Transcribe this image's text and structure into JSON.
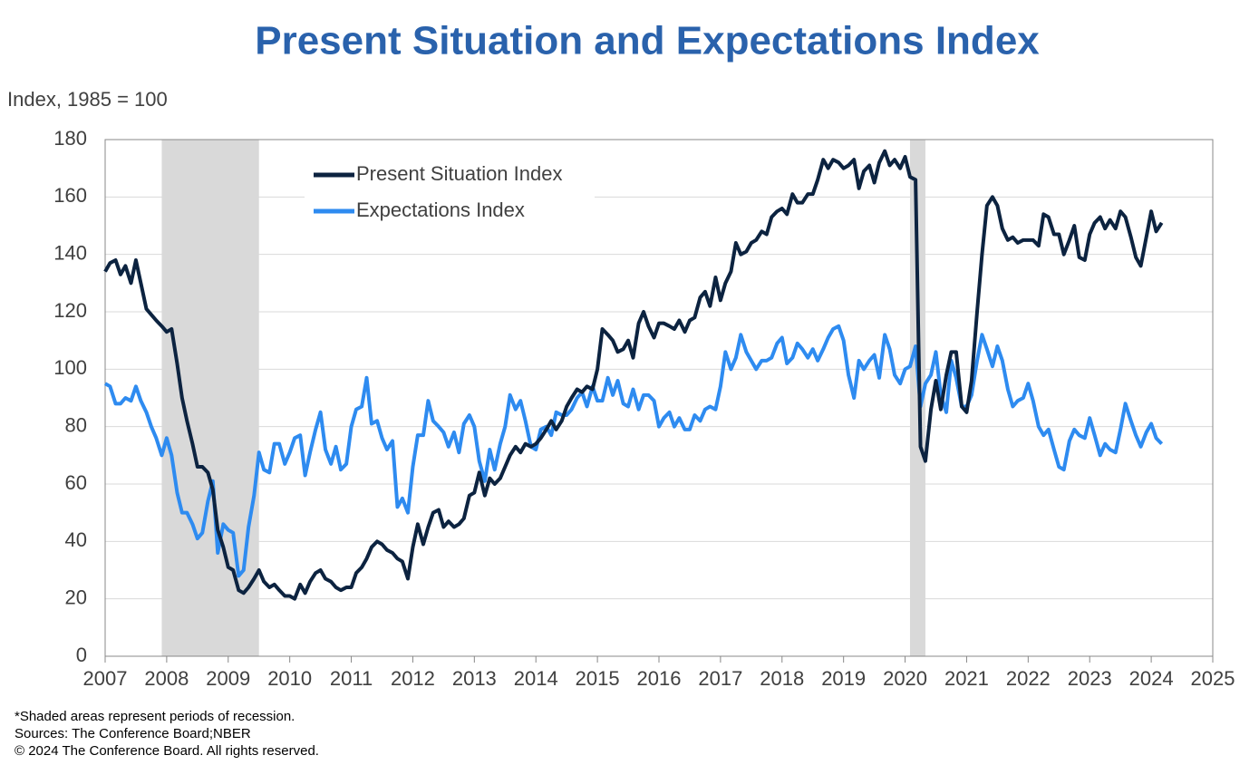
{
  "chart_data": {
    "type": "line",
    "title": "Present Situation and Expectations Index",
    "y_label": "Index, 1985 = 100",
    "notes": [
      "*Shaded areas represent periods of recession.",
      "Sources: The Conference Board;NBER",
      "© 2024 The Conference Board. All rights reserved."
    ],
    "xlim": [
      2007,
      2025
    ],
    "xticks": [
      2007,
      2008,
      2009,
      2010,
      2011,
      2012,
      2013,
      2014,
      2015,
      2016,
      2017,
      2018,
      2019,
      2020,
      2021,
      2022,
      2023,
      2024,
      2025
    ],
    "ylim": [
      0,
      180
    ],
    "yticks": [
      0,
      20,
      40,
      60,
      80,
      100,
      120,
      140,
      160,
      180
    ],
    "grid": true,
    "legend": "upper-left",
    "recessions": [
      [
        2007.92,
        2009.5
      ],
      [
        2020.08,
        2020.33
      ]
    ],
    "x": [
      2007,
      2007.08,
      2007.17,
      2007.25,
      2007.33,
      2007.42,
      2007.5,
      2007.58,
      2007.67,
      2007.75,
      2007.83,
      2007.92,
      2008,
      2008.08,
      2008.17,
      2008.25,
      2008.33,
      2008.42,
      2008.5,
      2008.58,
      2008.67,
      2008.75,
      2008.83,
      2008.92,
      2009,
      2009.08,
      2009.17,
      2009.25,
      2009.33,
      2009.42,
      2009.5,
      2009.58,
      2009.67,
      2009.75,
      2009.83,
      2009.92,
      2010,
      2010.08,
      2010.17,
      2010.25,
      2010.33,
      2010.42,
      2010.5,
      2010.58,
      2010.67,
      2010.75,
      2010.83,
      2010.92,
      2011,
      2011.08,
      2011.17,
      2011.25,
      2011.33,
      2011.42,
      2011.5,
      2011.58,
      2011.67,
      2011.75,
      2011.83,
      2011.92,
      2012,
      2012.08,
      2012.17,
      2012.25,
      2012.33,
      2012.42,
      2012.5,
      2012.58,
      2012.67,
      2012.75,
      2012.83,
      2012.92,
      2013,
      2013.08,
      2013.17,
      2013.25,
      2013.33,
      2013.42,
      2013.5,
      2013.58,
      2013.67,
      2013.75,
      2013.83,
      2013.92,
      2014,
      2014.08,
      2014.17,
      2014.25,
      2014.33,
      2014.42,
      2014.5,
      2014.58,
      2014.67,
      2014.75,
      2014.83,
      2014.92,
      2015,
      2015.08,
      2015.17,
      2015.25,
      2015.33,
      2015.42,
      2015.5,
      2015.58,
      2015.67,
      2015.75,
      2015.83,
      2015.92,
      2016,
      2016.08,
      2016.17,
      2016.25,
      2016.33,
      2016.42,
      2016.5,
      2016.58,
      2016.67,
      2016.75,
      2016.83,
      2016.92,
      2017,
      2017.08,
      2017.17,
      2017.25,
      2017.33,
      2017.42,
      2017.5,
      2017.58,
      2017.67,
      2017.75,
      2017.83,
      2017.92,
      2018,
      2018.08,
      2018.17,
      2018.25,
      2018.33,
      2018.42,
      2018.5,
      2018.58,
      2018.67,
      2018.75,
      2018.83,
      2018.92,
      2019,
      2019.08,
      2019.17,
      2019.25,
      2019.33,
      2019.42,
      2019.5,
      2019.58,
      2019.67,
      2019.75,
      2019.83,
      2019.92,
      2020,
      2020.08,
      2020.17,
      2020.25,
      2020.33,
      2020.42,
      2020.5,
      2020.58,
      2020.67,
      2020.75,
      2020.83,
      2020.92,
      2021,
      2021.08,
      2021.17,
      2021.25,
      2021.33,
      2021.42,
      2021.5,
      2021.58,
      2021.67,
      2021.75,
      2021.83,
      2021.92,
      2022,
      2022.08,
      2022.17,
      2022.25,
      2022.33,
      2022.42,
      2022.5,
      2022.58,
      2022.67,
      2022.75,
      2022.83,
      2022.92,
      2023,
      2023.08,
      2023.17,
      2023.25,
      2023.33,
      2023.42,
      2023.5,
      2023.58,
      2023.67,
      2023.75,
      2023.83,
      2023.92,
      2024,
      2024.08,
      2024.17
    ],
    "series": [
      {
        "name": "Present Situation Index",
        "color": "#0c2340",
        "values": [
          134,
          137,
          138,
          133,
          136,
          130,
          138,
          130,
          121,
          119,
          117,
          115,
          113,
          114,
          102,
          90,
          82,
          74,
          66,
          66,
          64,
          58,
          44,
          38,
          31,
          30,
          23,
          22,
          24,
          27,
          30,
          26,
          24,
          25,
          23,
          21,
          21,
          20,
          25,
          22,
          26,
          29,
          30,
          27,
          26,
          24,
          23,
          24,
          24,
          29,
          31,
          34,
          38,
          40,
          39,
          37,
          36,
          34,
          33,
          27,
          38,
          46,
          39,
          45,
          50,
          51,
          45,
          47,
          45,
          46,
          48,
          56,
          57,
          64,
          56,
          62,
          60,
          62,
          66,
          70,
          73,
          71,
          74,
          73,
          74,
          76,
          79,
          82,
          79,
          82,
          87,
          90,
          93,
          92,
          94,
          93,
          100,
          114,
          112,
          110,
          106,
          107,
          110,
          104,
          116,
          120,
          115,
          111,
          116,
          116,
          115,
          114,
          117,
          113,
          117,
          118,
          125,
          127,
          122,
          132,
          124,
          130,
          134,
          144,
          140,
          141,
          144,
          145,
          148,
          147,
          153,
          155,
          156,
          154,
          161,
          158,
          158,
          161,
          161,
          166,
          173,
          170,
          173,
          172,
          170,
          171,
          173,
          163,
          169,
          171,
          165,
          172,
          176,
          171,
          173,
          170,
          174,
          167,
          166,
          73,
          68,
          86,
          96,
          86,
          98,
          106,
          106,
          87,
          85,
          96,
          120,
          140,
          157,
          160,
          157,
          149,
          145,
          146,
          144,
          145,
          145,
          145,
          143,
          154,
          153,
          147,
          147,
          140,
          145,
          150,
          139,
          138,
          147,
          151,
          153,
          149,
          152,
          149,
          155,
          153,
          146,
          139,
          136,
          146,
          155,
          148,
          151
        ]
      },
      {
        "name": "Expectations Index",
        "color": "#2e8bf0",
        "values": [
          95,
          94,
          88,
          88,
          90,
          89,
          94,
          89,
          85,
          80,
          76,
          70,
          76,
          70,
          57,
          50,
          50,
          46,
          41,
          43,
          54,
          61,
          36,
          46,
          44,
          43,
          28,
          30,
          45,
          56,
          71,
          65,
          64,
          74,
          74,
          67,
          71,
          76,
          77,
          63,
          71,
          79,
          85,
          72,
          67,
          73,
          65,
          67,
          80,
          86,
          87,
          97,
          81,
          82,
          76,
          72,
          75,
          52,
          55,
          50,
          66,
          77,
          77,
          89,
          82,
          80,
          78,
          73,
          78,
          71,
          81,
          84,
          80,
          68,
          61,
          72,
          65,
          74,
          80,
          91,
          86,
          89,
          82,
          73,
          72,
          79,
          80,
          77,
          85,
          84,
          84,
          86,
          90,
          92,
          87,
          94,
          89,
          89,
          97,
          91,
          96,
          88,
          87,
          93,
          86,
          91,
          91,
          89,
          80,
          83,
          85,
          80,
          83,
          79,
          79,
          84,
          82,
          86,
          87,
          86,
          94,
          106,
          100,
          104,
          112,
          106,
          103,
          100,
          103,
          103,
          104,
          109,
          111,
          102,
          104,
          109,
          107,
          104,
          107,
          103,
          107,
          111,
          114,
          115,
          110,
          98,
          90,
          103,
          100,
          103,
          105,
          97,
          112,
          107,
          98,
          95,
          100,
          101,
          108,
          87,
          95,
          98,
          106,
          91,
          85,
          103,
          97,
          87,
          87,
          91,
          103,
          112,
          107,
          101,
          108,
          103,
          93,
          87,
          89,
          90,
          95,
          89,
          80,
          77,
          79,
          72,
          66,
          65,
          75,
          79,
          77,
          76,
          83,
          77,
          70,
          74,
          72,
          71,
          79,
          88,
          82,
          77,
          73,
          78,
          81,
          76,
          74
        ]
      }
    ]
  }
}
